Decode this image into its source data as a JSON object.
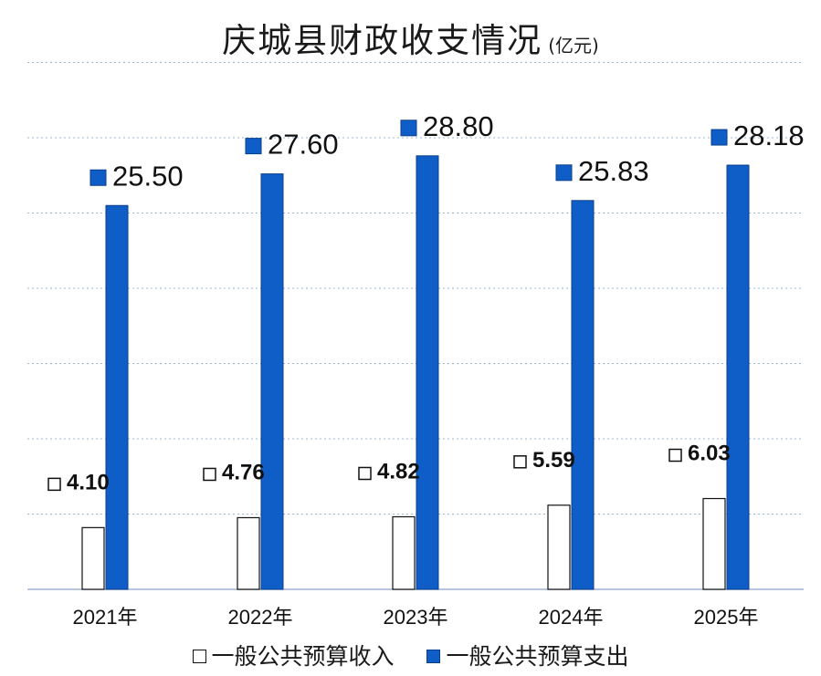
{
  "chart_data": {
    "type": "bar",
    "title": "庆城县财政收支情况",
    "unit": "(亿元)",
    "categories": [
      "2021年",
      "2022年",
      "2023年",
      "2024年",
      "2025年"
    ],
    "series": [
      {
        "name": "一般公共预算收入",
        "values": [
          4.1,
          4.76,
          4.82,
          5.59,
          6.03
        ],
        "labels": [
          "4.10",
          "4.76",
          "4.82",
          "5.59",
          "6.03"
        ],
        "color": "#ffffff"
      },
      {
        "name": "一般公共预算支出",
        "values": [
          25.5,
          27.6,
          28.8,
          25.83,
          28.18
        ],
        "labels": [
          "25.50",
          "27.60",
          "28.80",
          "25.83",
          "28.18"
        ],
        "color": "#0f5dc7"
      }
    ],
    "ylim": [
      0,
      35
    ],
    "grid": true,
    "legend_position": "bottom"
  }
}
